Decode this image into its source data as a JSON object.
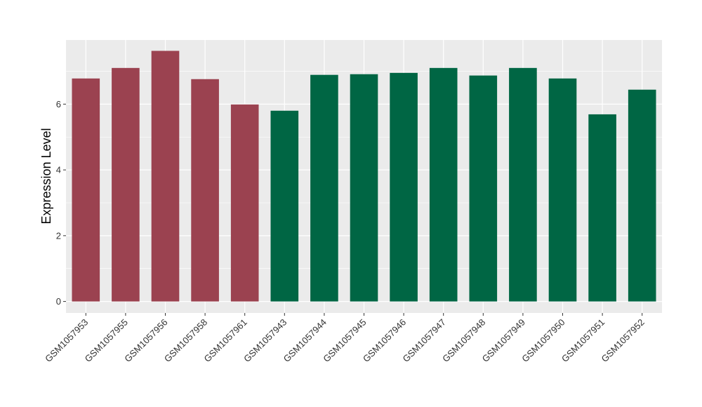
{
  "chart_data": {
    "type": "bar",
    "title": "",
    "xlabel": "",
    "ylabel": "Expression Level",
    "ylim": [
      -0.35,
      7.95
    ],
    "yticks": [
      0,
      2,
      4,
      6
    ],
    "grid": true,
    "legend": "none",
    "categories": [
      "GSM1057953",
      "GSM1057955",
      "GSM1057956",
      "GSM1057958",
      "GSM1057961",
      "GSM1057943",
      "GSM1057944",
      "GSM1057945",
      "GSM1057946",
      "GSM1057947",
      "GSM1057948",
      "GSM1057949",
      "GSM1057950",
      "GSM1057951",
      "GSM1057952"
    ],
    "values": [
      6.78,
      7.1,
      7.62,
      6.76,
      5.99,
      5.8,
      6.89,
      6.91,
      6.95,
      7.1,
      6.87,
      7.1,
      6.78,
      5.69,
      6.44
    ],
    "groups": [
      "a",
      "a",
      "a",
      "a",
      "a",
      "b",
      "b",
      "b",
      "b",
      "b",
      "b",
      "b",
      "b",
      "b",
      "b"
    ],
    "colors": {
      "a": "#9b4250",
      "b": "#006644"
    },
    "panel_background": "#ebebeb",
    "gridline_color": "#ffffff"
  }
}
